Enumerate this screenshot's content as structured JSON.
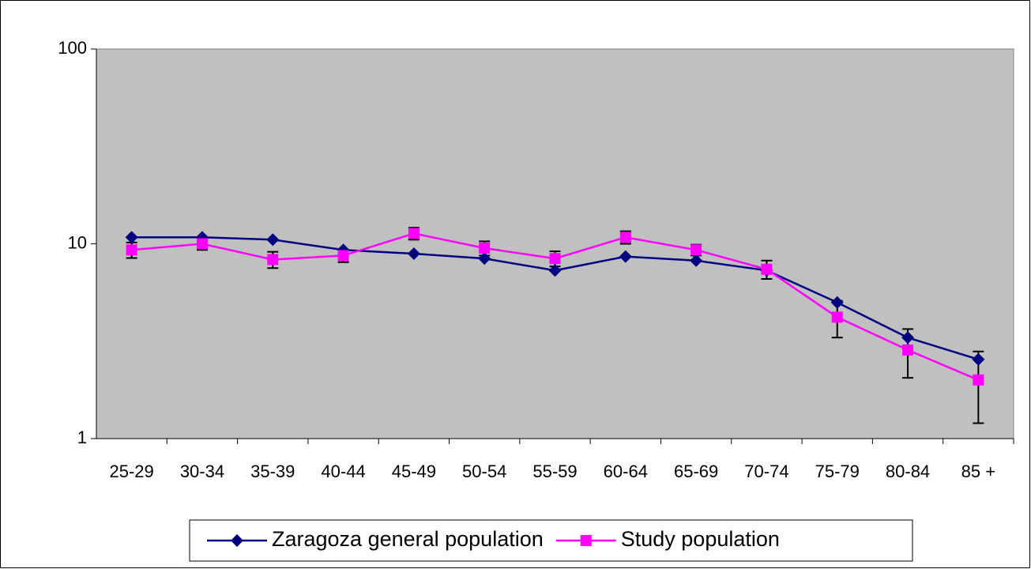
{
  "chart_data": {
    "type": "line",
    "categories": [
      "25-29",
      "30-34",
      "35-39",
      "40-44",
      "45-49",
      "50-54",
      "55-59",
      "60-64",
      "65-69",
      "70-74",
      "75-79",
      "80-84",
      "85 +"
    ],
    "series": [
      {
        "name": "Zaragoza general population",
        "color": "#000080",
        "marker": "diamond",
        "values": [
          10.8,
          10.8,
          10.5,
          9.3,
          8.9,
          8.4,
          7.3,
          8.6,
          8.2,
          7.3,
          5.0,
          3.3,
          2.55
        ]
      },
      {
        "name": "Study population",
        "color": "#ff00ff",
        "marker": "square",
        "values": [
          9.3,
          10.0,
          8.3,
          8.7,
          11.3,
          9.5,
          8.4,
          10.8,
          9.3,
          7.4,
          4.2,
          2.85,
          2.0
        ],
        "errors": [
          0.85,
          0.7,
          0.8,
          0.65,
          0.8,
          0.8,
          0.75,
          0.8,
          0.6,
          0.8,
          0.9,
          0.8,
          0.8
        ]
      }
    ],
    "ylim": [
      1,
      100
    ],
    "yticks": [
      1,
      10,
      100
    ],
    "log_scale": true,
    "grid": false,
    "plot_background": "#c0c0c0",
    "legend_position": "bottom"
  }
}
